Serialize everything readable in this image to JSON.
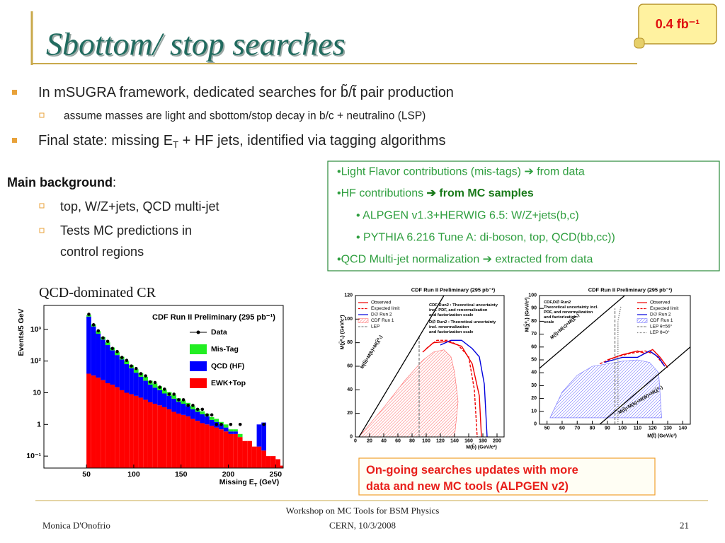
{
  "header": {
    "title": "Sbottom/ stop searches",
    "badge": "0.4 fb⁻¹"
  },
  "intro": {
    "line1": "In mSUGRA framework, dedicated searches for b̃/t̃ pair production",
    "line1_sub": "assume masses are light and sbottom/stop decay in b/c + neutralino (LSP)",
    "line2": [
      "Final state: missing E",
      "T",
      " + HF jets, identified via tagging algorithms"
    ]
  },
  "background": {
    "heading": "Main background",
    "colon": ":",
    "items": [
      "top, W/Z+jets, QCD multi-jet",
      [
        "Tests MC predictions in",
        "control regions"
      ]
    ]
  },
  "sources": {
    "lines": [
      "•Light Flavor contributions (mis-tags) ➔ from data",
      [
        "•HF contributions ",
        "➔ from MC samples"
      ],
      "• ALPGEN v1.3+HERWIG 6.5: W/Z+jets(b,c)",
      "• PYTHIA 6.216 Tune A: di-boson, top, QCD(bb,cc))",
      "•QCD Multi-jet normalization ➔ extracted from data"
    ]
  },
  "caption": "QCD-dominated CR",
  "chart_data": [
    {
      "type": "histogram",
      "title": "CDF Run II Preliminary (295 pb⁻¹)",
      "x_label": [
        "Missing E",
        "T",
        " (GeV)"
      ],
      "y_label": "Events/5 GeV",
      "log_y": true,
      "xlim": [
        5,
        258
      ],
      "xticks": [
        50,
        100,
        150,
        200,
        250
      ],
      "ylim": [
        0.042,
        5700
      ],
      "yticks": [
        {
          "value": 0.1,
          "label": "10⁻¹"
        },
        1,
        10,
        {
          "value": 100,
          "label": "10²"
        },
        {
          "value": 1000,
          "label": "10³"
        }
      ],
      "bins": [
        50,
        55,
        60,
        65,
        70,
        75,
        80,
        85,
        90,
        95,
        100,
        105,
        110,
        115,
        120,
        125,
        130,
        135,
        140,
        145,
        150,
        155,
        160,
        165,
        170,
        175,
        180,
        185,
        190,
        195,
        200,
        205,
        210,
        215,
        220,
        225,
        230,
        235,
        240,
        245,
        250,
        255,
        260
      ],
      "series": [
        {
          "name": "EWK+Top",
          "color": "#ff0000",
          "values": [
            40,
            35,
            30,
            25,
            20,
            18,
            15,
            12,
            10,
            9,
            8,
            7,
            6,
            5,
            4.5,
            4,
            3.5,
            3,
            2.5,
            2.2,
            2,
            1.8,
            1.5,
            1.3,
            1.1,
            1,
            0.9,
            0.8,
            0.7,
            0.6,
            0.5,
            0.5,
            0.4,
            0.3,
            0.3,
            0.2,
            0.2,
            0.15,
            0.1,
            0.1,
            0.08,
            0.05
          ]
        },
        {
          "name": "QCD (HF)",
          "color": "#0000ff",
          "values": [
            2500,
            1200,
            700,
            450,
            300,
            200,
            140,
            100,
            70,
            50,
            35,
            25,
            18,
            13,
            10,
            8,
            6,
            5,
            4,
            3,
            2.5,
            2,
            1.5,
            1.2,
            1,
            0.8,
            0.5,
            0.4,
            0.3,
            0.2,
            0.1,
            0.1,
            0,
            0,
            0,
            0,
            0.8,
            1,
            0,
            0,
            0,
            0
          ]
        },
        {
          "name": "Mis-Tag",
          "color": "#22ee22",
          "values": [
            300,
            200,
            150,
            100,
            70,
            50,
            35,
            25,
            20,
            15,
            12,
            10,
            8,
            6,
            5,
            4,
            3,
            2.5,
            2,
            1.5,
            1.2,
            1,
            0.8,
            0.6,
            0.5,
            0.4,
            0.3,
            0.3,
            0.2,
            0.2,
            0.1,
            0.1,
            0.1,
            0,
            0,
            0,
            0,
            0,
            0,
            0,
            0,
            0
          ]
        }
      ],
      "data_points": {
        "name": "Data",
        "color": "#000000",
        "values": [
          3000,
          1400,
          900,
          540,
          420,
          250,
          200,
          130,
          105,
          70,
          58,
          40,
          34,
          22,
          21,
          15,
          13,
          9,
          9,
          6,
          6,
          4,
          4,
          3,
          3,
          2,
          2,
          1,
          1,
          null,
          1,
          null,
          1,
          null,
          null,
          null,
          null,
          1,
          null,
          null,
          null,
          null
        ]
      }
    },
    {
      "type": "line",
      "title": "CDF Run II Preliminary (295 pb⁻¹)",
      "x_label": "M(b̃) (GeV/c²)",
      "y_label": "M(χ̃⁰₁) (GeV/c²)",
      "xlim": [
        0,
        210
      ],
      "xticks": [
        0,
        20,
        40,
        60,
        80,
        100,
        120,
        140,
        160,
        180,
        200
      ],
      "ylim": [
        0,
        120
      ],
      "yticks": [
        0,
        20,
        40,
        60,
        80,
        100,
        120
      ],
      "annotations": [
        [
          "CDF Run2 : Theoretical uncertainty",
          "incl. PDF, and renormalization",
          "and factorization scale"
        ],
        [
          "D∅ Run2 : Theoretical uncertainty",
          "incl. renormalization",
          "and factorization scale"
        ]
      ],
      "diagonal_labels": [
        "M(b̃)=M(b)+M(χ̃⁰₁)"
      ],
      "series": [
        {
          "name": "Observed",
          "color": "#ee0000",
          "style": "solid",
          "x": [
            95,
            110,
            130,
            150,
            165,
            175,
            178
          ],
          "values": [
            72,
            80,
            81,
            77,
            62,
            35,
            0
          ]
        },
        {
          "name": "Expected limit",
          "color": "#ee0000",
          "style": "dashed",
          "x": [
            100,
            115,
            130,
            145,
            160,
            168,
            172
          ],
          "values": [
            75,
            82,
            82,
            78,
            68,
            40,
            0
          ]
        },
        {
          "name": "D∅ Run 2",
          "color": "#0000dd",
          "style": "solid",
          "x": [
            120,
            135,
            150,
            165,
            175,
            182,
            186
          ],
          "values": [
            78,
            82,
            82,
            75,
            68,
            45,
            0
          ]
        },
        {
          "name": "CDF Run 1",
          "color": "#ff6666",
          "style": "area",
          "x": [
            5,
            40,
            70,
            95,
            110,
            125,
            135,
            140,
            145,
            140,
            5
          ],
          "values": [
            0,
            25,
            48,
            65,
            72,
            74,
            68,
            55,
            30,
            0,
            0
          ]
        },
        {
          "name": "LEP",
          "color": "#888888",
          "style": "dashed",
          "x": [
            90,
            90
          ],
          "values": [
            0,
            85
          ]
        }
      ]
    },
    {
      "type": "line",
      "title": "CDF Run II Preliminary (295 pb⁻¹)",
      "x_label": "M(t̃) (GeV/c²)",
      "y_label": "M(χ̃⁰₁) (GeV/c²)",
      "xlim": [
        45,
        145
      ],
      "xticks": [
        50,
        60,
        70,
        80,
        90,
        100,
        110,
        120,
        130,
        140
      ],
      "ylim": [
        0,
        100
      ],
      "yticks": [
        0,
        10,
        20,
        30,
        40,
        50,
        60,
        70,
        80,
        90,
        100
      ],
      "annotations": [
        [
          "CDF,D∅ Run2",
          "Theoretical uncertainty incl.",
          "PDF, and renormalization",
          "and factorization",
          "scale"
        ]
      ],
      "diagonal_labels": [
        "M(t̃)=M(c)+M(χ̃⁰₁)",
        "M(t̃)=M(b)+M(W)+M(χ̃⁰₁)"
      ],
      "series": [
        {
          "name": "Observed",
          "color": "#ee0000",
          "style": "solid",
          "x": [
            90,
            100,
            110,
            115,
            120,
            125,
            130
          ],
          "values": [
            50,
            54,
            57,
            55,
            58,
            52,
            44
          ]
        },
        {
          "name": "Expected limit",
          "color": "#ee0000",
          "style": "dashed",
          "x": [
            85,
            95,
            105,
            115,
            122,
            128
          ],
          "values": [
            47,
            52,
            55,
            57,
            54,
            45
          ]
        },
        {
          "name": "D∅ Run 2",
          "color": "#0000dd",
          "style": "solid",
          "x": [
            88,
            100,
            110,
            118,
            124,
            128
          ],
          "values": [
            48,
            52,
            52,
            57,
            52,
            45
          ]
        },
        {
          "name": "CDF Run 1",
          "color": "#6666ff",
          "style": "area",
          "x": [
            52,
            60,
            70,
            80,
            90,
            100,
            110,
            118,
            124,
            126,
            52
          ],
          "values": [
            5,
            25,
            38,
            45,
            47,
            49,
            50,
            48,
            40,
            5,
            5
          ]
        },
        {
          "name": "LEP θ=56°",
          "color": "#888888",
          "style": "dashed",
          "x": [
            95,
            95
          ],
          "values": [
            0,
            90
          ]
        },
        {
          "name": "LEP θ=0°",
          "color": "#888888",
          "style": "dotted",
          "x": [
            97,
            97,
            99
          ],
          "values": [
            0,
            80,
            92
          ]
        }
      ]
    }
  ],
  "note": [
    "On-going searches updates with more",
    "data and new MC tools  (ALPGEN v2)"
  ],
  "footer": {
    "author": "Monica D'Onofrio",
    "event": [
      "Workshop on MC Tools for BSM Physics",
      "CERN, 10/3/2008"
    ],
    "page": "21"
  }
}
